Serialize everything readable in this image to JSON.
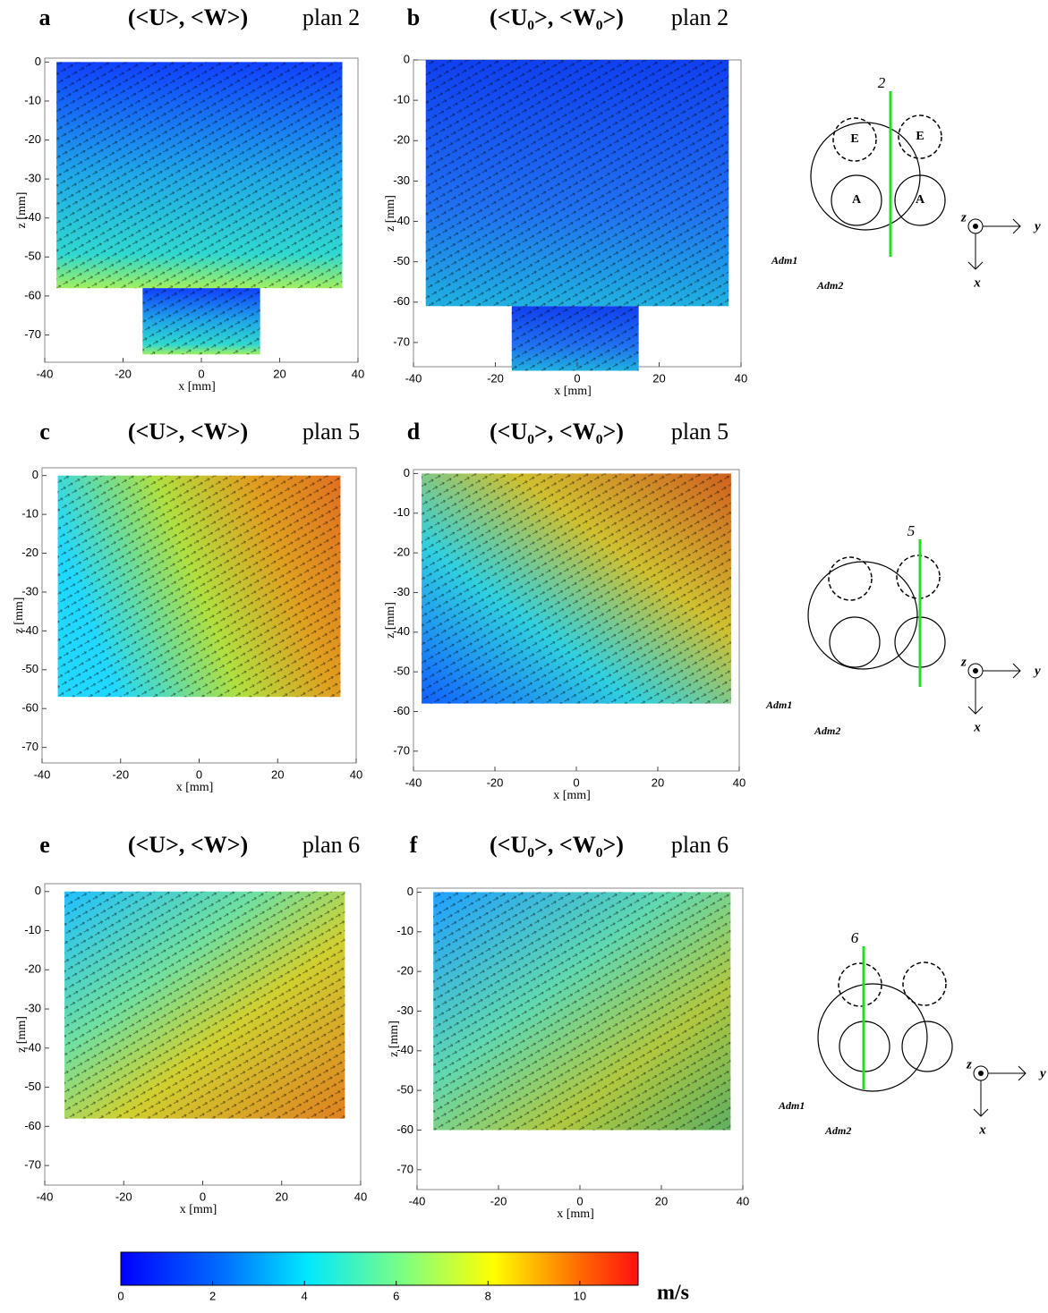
{
  "panels": [
    {
      "label": "a",
      "title": "(<U>, <W>)",
      "plane": "plan 2",
      "xlabel": "x [mm]",
      "ylabel": "z [mm]",
      "xlim": [
        -40,
        40
      ],
      "ylim": [
        -77,
        1
      ],
      "xticks": [
        -40,
        -20,
        0,
        20,
        40
      ],
      "yticks": [
        0,
        -10,
        -20,
        -30,
        -40,
        -50,
        -60,
        -70
      ]
    },
    {
      "label": "b",
      "title": "(<U₀>, <W₀>)",
      "plane": "plan 2",
      "xlabel": "x [mm]",
      "ylabel": "z [mm]",
      "xlim": [
        -40,
        40
      ],
      "ylim": [
        -76,
        0
      ],
      "xticks": [
        -40,
        -20,
        0,
        20,
        40
      ],
      "yticks": [
        0,
        -10,
        -20,
        -30,
        -40,
        -50,
        -60,
        -70
      ]
    },
    {
      "label": "c",
      "title": "(<U>, <W>)",
      "plane": "plan 5",
      "xlabel": "x [mm]",
      "ylabel": "z [mm]",
      "xlim": [
        -40,
        40
      ],
      "ylim": [
        -74,
        2
      ],
      "xticks": [
        -40,
        -20,
        0,
        20,
        40
      ],
      "yticks": [
        0,
        -10,
        -20,
        -30,
        -40,
        -50,
        -60,
        -70
      ]
    },
    {
      "label": "d",
      "title": "(<U₀>, <W₀>)",
      "plane": "plan 5",
      "xlabel": "x [mm]",
      "ylabel": "z [mm]",
      "xlim": [
        -40,
        40
      ],
      "ylim": [
        -75,
        1
      ],
      "xticks": [
        -40,
        -20,
        0,
        20,
        40
      ],
      "yticks": [
        0,
        -10,
        -20,
        -30,
        -40,
        -50,
        -60,
        -70
      ]
    },
    {
      "label": "e",
      "title": "(<U>, <W>)",
      "plane": "plan 6",
      "xlabel": "x [mm]",
      "ylabel": "z [mm]",
      "xlim": [
        -40,
        40
      ],
      "ylim": [
        -75,
        2
      ],
      "xticks": [
        -40,
        -20,
        0,
        20,
        40
      ],
      "yticks": [
        0,
        -10,
        -20,
        -30,
        -40,
        -50,
        -60,
        -70
      ]
    },
    {
      "label": "f",
      "title": "(<U₀>, <W₀>)",
      "plane": "plan 6",
      "xlabel": "x [mm]",
      "ylabel": "z [mm]",
      "xlim": [
        -40,
        40
      ],
      "ylim": [
        -75,
        1
      ],
      "xticks": [
        -40,
        -20,
        0,
        20,
        40
      ],
      "yticks": [
        0,
        -10,
        -20,
        -30,
        -40,
        -50,
        -60,
        -70
      ]
    }
  ],
  "diagrams": [
    {
      "plane": "2",
      "exhaust": [
        "E",
        "E"
      ],
      "admission": [
        "A",
        "A"
      ],
      "axes": [
        "z",
        "y",
        "x"
      ],
      "ports": [
        "Adm1",
        "Adm2"
      ]
    },
    {
      "plane": "5",
      "axes": [
        "z",
        "y",
        "x"
      ],
      "ports": [
        "Adm1",
        "Adm2"
      ]
    },
    {
      "plane": "6",
      "axes": [
        "z",
        "y",
        "x"
      ],
      "ports": [
        "Adm1",
        "Adm2"
      ]
    }
  ],
  "colorbar": {
    "lim": [
      0,
      11.27
    ],
    "ticks": [
      0,
      2,
      4,
      6,
      8,
      10
    ],
    "unit": "m/s"
  }
}
